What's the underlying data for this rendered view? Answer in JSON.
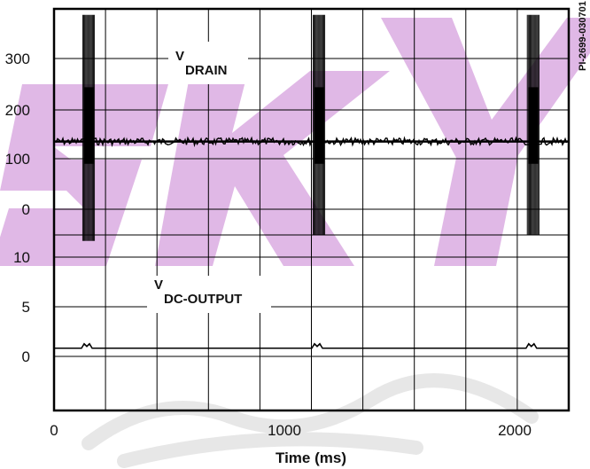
{
  "chart_data": {
    "type": "line",
    "xlabel": "Time (ms)",
    "x_ticks": [
      "0",
      "1000",
      "2000"
    ],
    "xlim": [
      0,
      2000
    ],
    "figure_code": "PI-2699-030701",
    "watermark": {
      "text": "SKY",
      "color": "#c77dd1"
    },
    "panels": [
      {
        "name": "V_DRAIN",
        "label_main": "V",
        "label_sub": "DRAIN",
        "ylim": [
          0,
          375
        ],
        "y_ticks": [
          "300",
          "200",
          "100",
          "0"
        ],
        "baseline": 155,
        "bursts": [
          {
            "x": 150,
            "peak_min": -10,
            "peak_max": 365,
            "core_min": 118,
            "core_max": 245
          },
          {
            "x": 1150,
            "peak_min": 0,
            "peak_max": 365,
            "core_min": 118,
            "core_max": 245
          },
          {
            "x": 2080,
            "peak_min": 0,
            "peak_max": 365,
            "core_min": 118,
            "core_max": 245
          }
        ]
      },
      {
        "name": "V_DC-OUTPUT",
        "label_main": "V",
        "label_sub": "DC-OUTPUT",
        "ylim": [
          -5,
          15
        ],
        "y_ticks": [
          "10",
          "5",
          "0"
        ],
        "baseline": 0,
        "blips": [
          150,
          1150,
          2080
        ]
      }
    ]
  }
}
